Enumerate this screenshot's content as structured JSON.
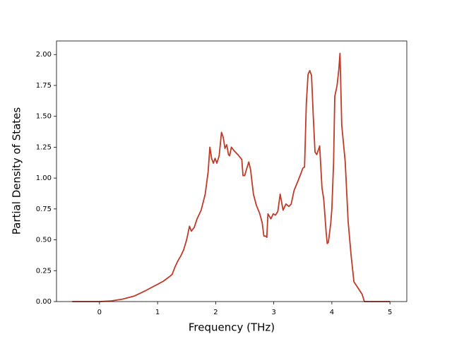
{
  "chart_data": {
    "type": "line",
    "xlabel": "Frequency (THz)",
    "ylabel": "Partial Density of States",
    "xlim": [
      -0.74,
      5.29
    ],
    "ylim": [
      0,
      2.11
    ],
    "xticks": [
      0,
      1,
      2,
      3,
      4,
      5
    ],
    "yticks": [
      {
        "value": 0,
        "label": "0.00"
      },
      {
        "value": 0.25,
        "label": "0.25"
      },
      {
        "value": 0.5,
        "label": "0.50"
      },
      {
        "value": 0.75,
        "label": "0.75"
      },
      {
        "value": 1,
        "label": "1.00"
      },
      {
        "value": 1.25,
        "label": "1.25"
      },
      {
        "value": 1.5,
        "label": "1.50"
      },
      {
        "value": 1.75,
        "label": "1.75"
      },
      {
        "value": 2,
        "label": "2.00"
      }
    ],
    "grid": false,
    "series": [
      {
        "color": "#c03a26",
        "x": [
          -0.47,
          0,
          0.2,
          0.4,
          0.6,
          0.8,
          0.9,
          1.0,
          1.1,
          1.2,
          1.25,
          1.3,
          1.35,
          1.4,
          1.45,
          1.5,
          1.55,
          1.58,
          1.63,
          1.68,
          1.75,
          1.82,
          1.87,
          1.9,
          1.93,
          1.96,
          1.99,
          2.02,
          2.06,
          2.1,
          2.13,
          2.16,
          2.19,
          2.22,
          2.24,
          2.27,
          2.32,
          2.4,
          2.45,
          2.47,
          2.5,
          2.53,
          2.57,
          2.6,
          2.65,
          2.7,
          2.76,
          2.8,
          2.83,
          2.86,
          2.88,
          2.9,
          2.95,
          2.99,
          3.03,
          3.07,
          3.11,
          3.16,
          3.21,
          3.26,
          3.3,
          3.35,
          3.42,
          3.47,
          3.5,
          3.53,
          3.56,
          3.59,
          3.62,
          3.65,
          3.68,
          3.71,
          3.74,
          3.79,
          3.83,
          3.86,
          3.9,
          3.92,
          3.94,
          3.98,
          4.0,
          4.03,
          4.05,
          4.09,
          4.12,
          4.14,
          4.17,
          4.23,
          4.28,
          4.33,
          4.38,
          4.45,
          4.52,
          4.56,
          5.0
        ],
        "values": [
          0,
          0,
          0.005,
          0.02,
          0.045,
          0.09,
          0.115,
          0.14,
          0.165,
          0.2,
          0.22,
          0.28,
          0.33,
          0.37,
          0.42,
          0.5,
          0.61,
          0.57,
          0.6,
          0.67,
          0.74,
          0.87,
          1.05,
          1.25,
          1.16,
          1.12,
          1.16,
          1.12,
          1.18,
          1.37,
          1.33,
          1.24,
          1.27,
          1.19,
          1.18,
          1.25,
          1.22,
          1.18,
          1.15,
          1.02,
          1.02,
          1.07,
          1.13,
          1.07,
          0.87,
          0.78,
          0.71,
          0.64,
          0.53,
          0.53,
          0.52,
          0.71,
          0.67,
          0.71,
          0.7,
          0.73,
          0.87,
          0.74,
          0.79,
          0.77,
          0.79,
          0.9,
          0.98,
          1.04,
          1.08,
          1.09,
          1.6,
          1.84,
          1.87,
          1.83,
          1.5,
          1.21,
          1.19,
          1.26,
          0.92,
          0.83,
          0.57,
          0.47,
          0.48,
          0.63,
          0.75,
          1.13,
          1.66,
          1.75,
          1.88,
          2.01,
          1.43,
          1.13,
          0.65,
          0.38,
          0.16,
          0.11,
          0.06,
          0,
          0
        ]
      }
    ]
  }
}
